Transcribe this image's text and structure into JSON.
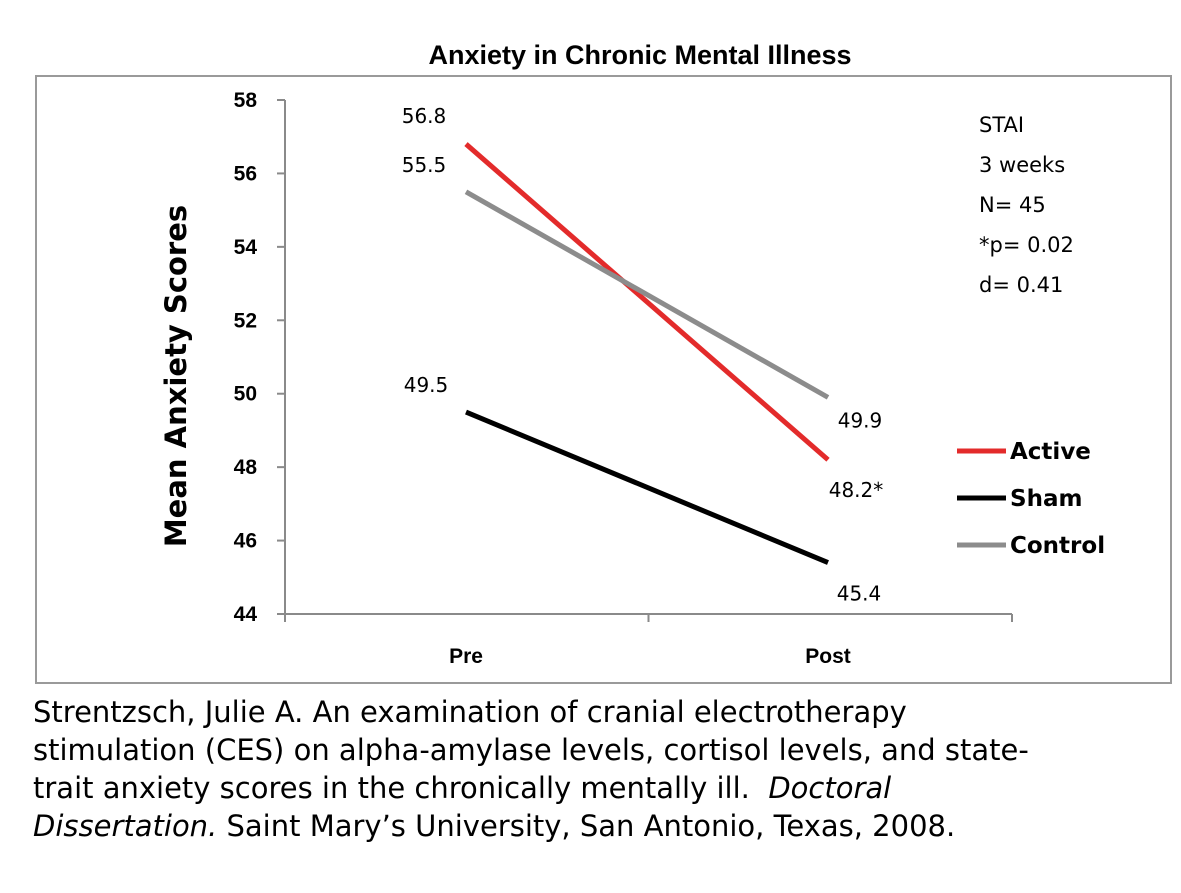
{
  "chart_data": {
    "type": "line",
    "title": "Anxiety in Chronic Mental Illness",
    "xlabel": "",
    "ylabel": "Mean Anxiety Scores",
    "categories": [
      "Pre",
      "Post"
    ],
    "ylim": [
      44,
      58
    ],
    "yticks": [
      "44",
      "46",
      "48",
      "50",
      "52",
      "54",
      "56",
      "58"
    ],
    "grid": false,
    "legend_position": "right",
    "series": [
      {
        "name": "Active",
        "color": "#e32b2b",
        "values": [
          56.8,
          48.2
        ],
        "labels": [
          "56.8",
          "48.2*"
        ]
      },
      {
        "name": "Sham",
        "color": "#000000",
        "values": [
          49.5,
          45.4
        ],
        "labels": [
          "49.5",
          "45.4"
        ]
      },
      {
        "name": "Control",
        "color": "#8c8c8c",
        "values": [
          55.5,
          49.9
        ],
        "labels": [
          "55.5",
          "49.9"
        ]
      }
    ],
    "annotation": [
      "STAI",
      "3 weeks",
      "N= 45",
      "*p= 0.02",
      "d= 0.41"
    ]
  },
  "citation": {
    "text_1": "Strentzsch, Julie A. An examination of cranial electrotherapy",
    "text_2": "stimulation (CES) on alpha-amylase levels, cortisol levels, and state-",
    "text_3": "trait anxiety scores in the chronically mentally ill.",
    "italic_1": "Doctoral",
    "italic_2": "Dissertation.",
    "text_4": "Saint Mary’s University, San Antonio, Texas, 2008."
  }
}
